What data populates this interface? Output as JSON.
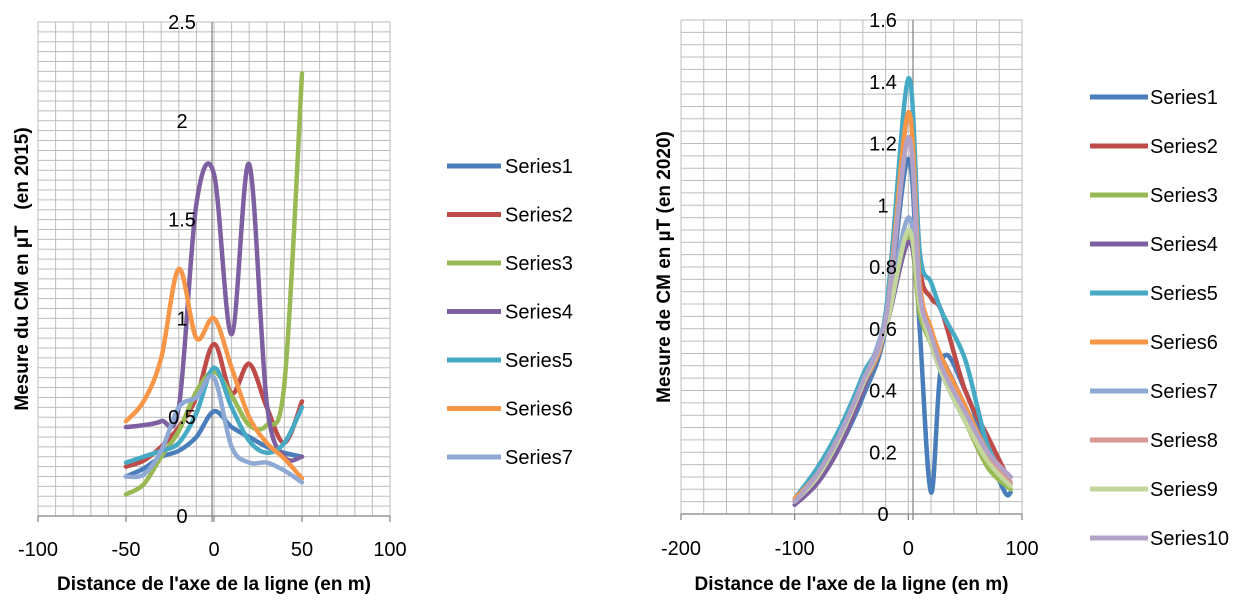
{
  "chart_data": [
    {
      "type": "line",
      "title": "",
      "xlabel": "Distance de l'axe de la ligne (en m)",
      "ylabel": "Mesure du CM en µT   (en 2015)",
      "xlim": [
        -100,
        100
      ],
      "ylim": [
        0,
        2.5
      ],
      "x_ticks": [
        "-100",
        "-50",
        "0",
        "50",
        "100"
      ],
      "y_ticks": [
        "0",
        "0.5",
        "1",
        "1.5",
        "2",
        "2.5"
      ],
      "grid": true,
      "legend": "right",
      "series": [
        {
          "name": "Series1",
          "color": "#4A7EBB",
          "x": [
            -50,
            -40,
            -30,
            -20,
            -10,
            0,
            10,
            20,
            30,
            40,
            50
          ],
          "y": [
            0.2,
            0.24,
            0.3,
            0.33,
            0.4,
            0.53,
            0.45,
            0.4,
            0.35,
            0.32,
            0.3
          ]
        },
        {
          "name": "Series2",
          "color": "#BE4B48",
          "x": [
            -50,
            -40,
            -30,
            -20,
            -10,
            0,
            10,
            20,
            30,
            40,
            50
          ],
          "y": [
            0.25,
            0.28,
            0.35,
            0.45,
            0.6,
            0.87,
            0.62,
            0.77,
            0.55,
            0.37,
            0.58
          ]
        },
        {
          "name": "Series3",
          "color": "#98B954",
          "x": [
            -50,
            -40,
            -30,
            -20,
            -10,
            0,
            10,
            20,
            30,
            40,
            50
          ],
          "y": [
            0.11,
            0.16,
            0.3,
            0.43,
            0.63,
            0.73,
            0.61,
            0.46,
            0.46,
            0.67,
            2.24
          ]
        },
        {
          "name": "Series4",
          "color": "#7D60A0",
          "x": [
            -50,
            -40,
            -30,
            -20,
            -10,
            0,
            10,
            20,
            30,
            40,
            50
          ],
          "y": [
            0.45,
            0.46,
            0.48,
            0.55,
            1.58,
            1.73,
            0.92,
            1.78,
            0.57,
            0.3,
            0.3
          ]
        },
        {
          "name": "Series5",
          "color": "#46AAC5",
          "x": [
            -50,
            -40,
            -30,
            -20,
            -10,
            0,
            10,
            20,
            30,
            40,
            50
          ],
          "y": [
            0.27,
            0.3,
            0.33,
            0.37,
            0.52,
            0.75,
            0.55,
            0.38,
            0.32,
            0.37,
            0.55
          ]
        },
        {
          "name": "Series6",
          "color": "#F79646",
          "x": [
            -50,
            -40,
            -30,
            -20,
            -10,
            0,
            10,
            20,
            30,
            40,
            50
          ],
          "y": [
            0.48,
            0.58,
            0.8,
            1.25,
            0.9,
            1.0,
            0.75,
            0.5,
            0.37,
            0.29,
            0.19
          ]
        },
        {
          "name": "Series7",
          "color": "#8EA9D4",
          "x": [
            -50,
            -40,
            -30,
            -20,
            -10,
            0,
            10,
            20,
            30,
            40,
            50
          ],
          "y": [
            0.2,
            0.21,
            0.33,
            0.55,
            0.6,
            0.7,
            0.35,
            0.27,
            0.27,
            0.23,
            0.17
          ]
        }
      ]
    },
    {
      "type": "line",
      "title": "",
      "xlabel": "Distance de l'axe de la ligne (en m)",
      "ylabel": "Mesure de CM en µT (en 2020)",
      "xlim": [
        -200,
        100
      ],
      "ylim": [
        0,
        1.6
      ],
      "x_ticks": [
        "-200",
        "-100",
        "0",
        "100"
      ],
      "y_ticks": [
        "0",
        "0.2",
        "0.4",
        "0.6",
        "0.8",
        "1",
        "1.2",
        "1.4",
        "1.6"
      ],
      "grid": true,
      "legend": "right",
      "series": [
        {
          "name": "Series1",
          "color": "#4A7EBB",
          "x": [
            -100,
            -80,
            -60,
            -40,
            -20,
            0,
            10,
            20,
            30,
            50,
            70,
            85,
            90
          ],
          "y": [
            0.04,
            0.1,
            0.22,
            0.38,
            0.6,
            1.15,
            0.6,
            0.07,
            0.5,
            0.4,
            0.2,
            0.07,
            0.07
          ]
        },
        {
          "name": "Series2",
          "color": "#BE4B48",
          "x": [
            -100,
            -80,
            -60,
            -40,
            -20,
            0,
            10,
            20,
            30,
            50,
            70,
            90
          ],
          "y": [
            0.04,
            0.12,
            0.25,
            0.42,
            0.62,
            1.3,
            0.8,
            0.7,
            0.65,
            0.4,
            0.25,
            0.1
          ]
        },
        {
          "name": "Series3",
          "color": "#98B954",
          "x": [
            -100,
            -80,
            -60,
            -40,
            -20,
            0,
            10,
            20,
            30,
            50,
            70,
            90
          ],
          "y": [
            0.05,
            0.12,
            0.25,
            0.4,
            0.6,
            0.9,
            0.65,
            0.55,
            0.45,
            0.3,
            0.15,
            0.08
          ]
        },
        {
          "name": "Series4",
          "color": "#7D60A0",
          "x": [
            -100,
            -80,
            -60,
            -40,
            -20,
            0,
            10,
            20,
            30,
            50,
            70,
            90
          ],
          "y": [
            0.03,
            0.1,
            0.22,
            0.4,
            0.6,
            0.88,
            0.7,
            0.55,
            0.5,
            0.35,
            0.2,
            0.12
          ]
        },
        {
          "name": "Series5",
          "color": "#46AAC5",
          "x": [
            -100,
            -80,
            -60,
            -40,
            -20,
            0,
            10,
            20,
            30,
            50,
            70,
            90
          ],
          "y": [
            0.05,
            0.15,
            0.28,
            0.45,
            0.65,
            1.41,
            0.85,
            0.75,
            0.65,
            0.5,
            0.22,
            0.1
          ]
        },
        {
          "name": "Series6",
          "color": "#F79646",
          "x": [
            -100,
            -80,
            -60,
            -40,
            -20,
            0,
            10,
            20,
            30,
            50,
            70,
            90
          ],
          "y": [
            0.05,
            0.13,
            0.26,
            0.42,
            0.62,
            1.3,
            0.75,
            0.6,
            0.5,
            0.35,
            0.2,
            0.1
          ]
        },
        {
          "name": "Series7",
          "color": "#8EA9D4",
          "x": [
            -100,
            -80,
            -60,
            -40,
            -20,
            0,
            10,
            20,
            30,
            50,
            70,
            90
          ],
          "y": [
            0.04,
            0.12,
            0.26,
            0.42,
            0.63,
            0.96,
            0.7,
            0.55,
            0.45,
            0.3,
            0.18,
            0.1
          ]
        },
        {
          "name": "Series8",
          "color": "#D99694",
          "x": [
            -100,
            -80,
            -60,
            -40,
            -20,
            0,
            10,
            20,
            30,
            50,
            70,
            90
          ],
          "y": [
            0.04,
            0.12,
            0.25,
            0.42,
            0.62,
            1.22,
            0.72,
            0.58,
            0.45,
            0.32,
            0.18,
            0.1
          ]
        },
        {
          "name": "Series9",
          "color": "#C3D69B",
          "x": [
            -100,
            -80,
            -60,
            -40,
            -20,
            0,
            10,
            20,
            30,
            50,
            70,
            90
          ],
          "y": [
            0.04,
            0.12,
            0.25,
            0.42,
            0.6,
            0.92,
            0.68,
            0.55,
            0.45,
            0.3,
            0.17,
            0.09
          ]
        },
        {
          "name": "Series10",
          "color": "#B3A2C7",
          "x": [
            -100,
            -80,
            -60,
            -40,
            -20,
            0,
            10,
            20,
            30,
            50,
            70,
            90
          ],
          "y": [
            0.04,
            0.13,
            0.26,
            0.43,
            0.63,
            1.22,
            0.72,
            0.58,
            0.47,
            0.33,
            0.2,
            0.12
          ]
        }
      ]
    }
  ]
}
